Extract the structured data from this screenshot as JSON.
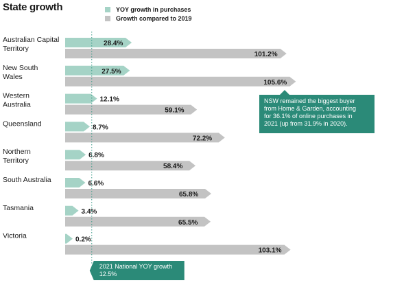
{
  "chart_data": {
    "type": "bar",
    "title": "State growth",
    "categories": [
      [
        "Australian Capital",
        "Territory"
      ],
      [
        "New South",
        "Wales"
      ],
      [
        "Western",
        "Australia"
      ],
      [
        "Queensland"
      ],
      [
        "Northern",
        "Territory"
      ],
      [
        "South Australia"
      ],
      [
        "Tasmania"
      ],
      [
        "Victoria"
      ]
    ],
    "series": [
      {
        "name": "YOY growth in purchases",
        "values": [
          28.4,
          27.5,
          12.1,
          8.7,
          6.8,
          6.6,
          3.4,
          0.2
        ],
        "labels": [
          "28.4%",
          "27.5%",
          "12.1%",
          "8.7%",
          "6.8%",
          "6.6%",
          "3.4%",
          "0.2%"
        ],
        "color": "#a5d3c6"
      },
      {
        "name": "Growth compared to 2019",
        "values": [
          101.2,
          105.6,
          59.1,
          72.2,
          58.4,
          65.8,
          65.5,
          103.1
        ],
        "labels": [
          "101.2%",
          "105.6%",
          "59.1%",
          "72.2%",
          "58.4%",
          "65.8%",
          "65.5%",
          "103.1%"
        ],
        "color": "#c3c3c3"
      }
    ],
    "reference_line": {
      "value": 12.5,
      "label": "2021 National YOY growth",
      "value_label": "12.5%"
    },
    "annotation": {
      "lines": [
        "NSW remained the biggest buyer",
        "from Home & Garden, accounting",
        "for 36.1% of online purchases in",
        "2021 (up from 31.9% in 2020)."
      ],
      "color": "#2b8a78"
    },
    "legend": "top"
  }
}
